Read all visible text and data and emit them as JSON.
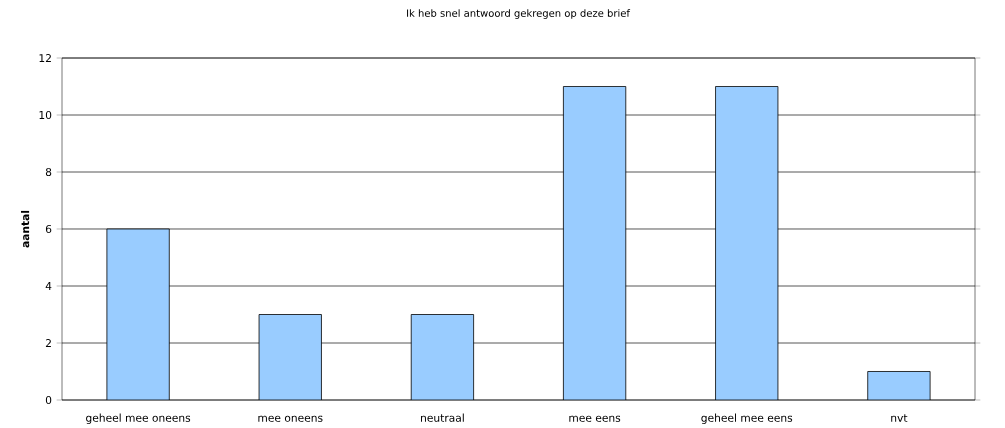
{
  "chart_data": {
    "type": "bar",
    "title": "Ik heb snel antwoord gekregen op deze brief",
    "ylabel": "aantal",
    "categories": [
      "geheel mee oneens",
      "mee oneens",
      "neutraal",
      "mee eens",
      "geheel mee eens",
      "nvt"
    ],
    "values": [
      6,
      3,
      3,
      11,
      11,
      1
    ],
    "color": "#99ccff",
    "ylim": [
      0,
      12
    ],
    "yticks": [
      0,
      2,
      4,
      6,
      8,
      10,
      12
    ],
    "grid": "y"
  }
}
